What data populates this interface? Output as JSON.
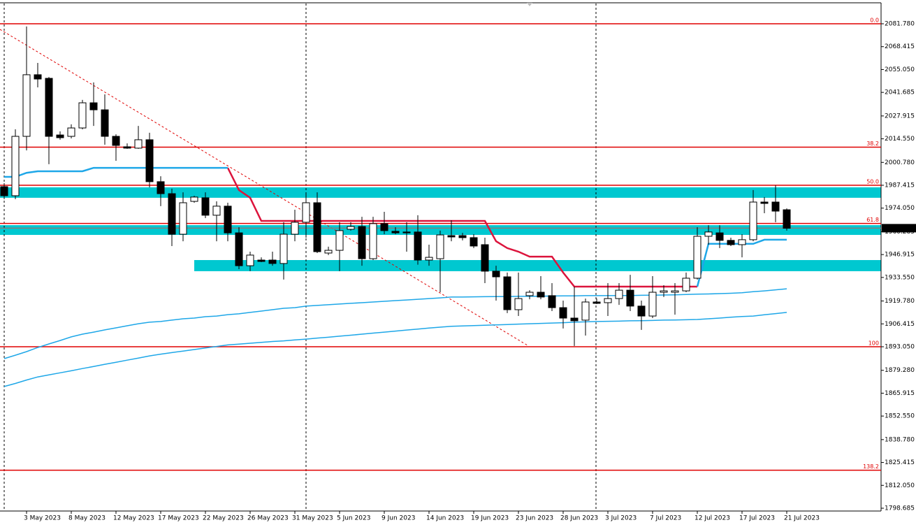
{
  "chart_data": {
    "type": "candlestick",
    "categories": [
      null,
      null,
      "3 May 2023",
      null,
      null,
      null,
      "8 May 2023",
      null,
      null,
      null,
      "12 May 2023",
      null,
      null,
      null,
      "17 May 2023",
      null,
      null,
      null,
      "22 May 2023",
      null,
      null,
      null,
      "26 May 2023",
      null,
      null,
      null,
      "31 May 2023",
      null,
      null,
      null,
      "5 Jun 2023",
      null,
      null,
      null,
      "9 Jun 2023",
      null,
      null,
      null,
      "14 Jun 2023",
      null,
      null,
      null,
      "19 Jun 2023",
      null,
      null,
      null,
      "23 Jun 2023",
      null,
      null,
      null,
      "28 Jun 2023",
      null,
      null,
      null,
      "3 Jul 2023",
      null,
      null,
      null,
      "7 Jul 2023",
      null,
      null,
      null,
      "12 Jul 2023",
      null,
      null,
      null,
      "17 Jul 2023",
      null,
      null,
      null,
      "21 Jul 2023"
    ],
    "open": [
      1986.6,
      1981.3,
      2016.0,
      2052.0,
      2049.9,
      2016.8,
      2016.0,
      2020.9,
      2035.6,
      2031.5,
      2016.0,
      2009.9,
      2009.1,
      2014.0,
      1989.5,
      1982.5,
      1958.8,
      1978.0,
      1980.1,
      1969.9,
      1975.2,
      1959.6,
      1940.4,
      1943.7,
      1943.7,
      1941.7,
      1958.8,
      1965.8,
      1977.2,
      1947.8,
      1949.4,
      1961.7,
      1963.3,
      1944.5,
      1965.0,
      1960.5,
      1960.1,
      1960.1,
      1943.7,
      1944.5,
      1958.0,
      1958.0,
      1956.8,
      1952.7,
      1937.2,
      1933.9,
      1914.7,
      1922.9,
      1924.9,
      1922.9,
      1915.9,
      1909.8,
      1908.6,
      1919.2,
      1918.8,
      1921.2,
      1926.1,
      1916.8,
      1911.0,
      1924.9,
      1924.9,
      1925.7,
      1933.1,
      1957.6,
      1959.6,
      1955.2,
      1952.7,
      1955.6,
      1977.6,
      1977.6,
      1973.1
    ],
    "high": [
      1988.7,
      2020.1,
      2080.2,
      2058.9,
      2050.7,
      2018.9,
      2023.0,
      2037.3,
      2047.5,
      2040.5,
      2017.2,
      2011.9,
      2022.1,
      2018.1,
      1992.7,
      1985.4,
      1983.3,
      1981.3,
      1983.3,
      1978.0,
      1977.2,
      1962.9,
      1948.6,
      1945.3,
      1948.6,
      1965.8,
      1973.1,
      1983.3,
      1983.3,
      1951.5,
      1965.8,
      1965.8,
      1969.0,
      1969.0,
      1971.9,
      1962.9,
      1965.8,
      1969.9,
      1952.7,
      1960.9,
      1967.0,
      1959.6,
      1958.8,
      1956.8,
      1940.4,
      1936.4,
      1936.4,
      1926.1,
      1934.3,
      1930.2,
      1920.0,
      1928.2,
      1921.2,
      1921.2,
      1930.2,
      1930.2,
      1935.1,
      1920.0,
      1934.3,
      1929.0,
      1930.2,
      1936.4,
      1962.9,
      1964.1,
      1964.1,
      1956.8,
      1958.8,
      1984.6,
      1980.5,
      1987.4,
      1973.9
    ],
    "low": [
      1979.3,
      1979.3,
      2007.8,
      2044.6,
      1999.7,
      2014.0,
      2014.8,
      2020.1,
      2022.1,
      2011.1,
      2001.7,
      2008.7,
      2008.7,
      1986.2,
      1975.2,
      1951.9,
      1954.7,
      1977.2,
      1968.2,
      1954.7,
      1954.7,
      1938.4,
      1937.2,
      1942.5,
      1940.4,
      1932.3,
      1954.7,
      1956.8,
      1947.8,
      1946.6,
      1937.2,
      1960.9,
      1940.4,
      1943.7,
      1958.8,
      1958.8,
      1948.6,
      1941.0,
      1940.4,
      1924.9,
      1954.7,
      1955.2,
      1950.7,
      1930.2,
      1920.0,
      1912.7,
      1911.0,
      1920.8,
      1920.8,
      1913.9,
      1903.7,
      1893.5,
      1899.6,
      1918.0,
      1911.0,
      1917.5,
      1913.9,
      1902.9,
      1909.8,
      1922.1,
      1911.8,
      1924.9,
      1932.3,
      1952.7,
      1950.7,
      1951.9,
      1945.3,
      1954.7,
      1971.1,
      1965.8,
      1960.9
    ],
    "close": [
      1981.3,
      2016.0,
      2052.0,
      2049.5,
      2016.0,
      2015.2,
      2020.9,
      2035.6,
      2031.5,
      2016.0,
      2010.7,
      2009.1,
      2014.0,
      1989.5,
      1982.5,
      1958.8,
      1977.2,
      1980.5,
      1969.9,
      1975.2,
      1959.6,
      1940.4,
      1946.6,
      1942.9,
      1941.7,
      1958.8,
      1965.8,
      1977.2,
      1948.6,
      1949.4,
      1960.9,
      1963.3,
      1944.5,
      1965.0,
      1960.9,
      1959.6,
      1959.6,
      1943.7,
      1945.3,
      1958.4,
      1957.2,
      1956.8,
      1951.9,
      1937.2,
      1933.9,
      1914.7,
      1921.2,
      1924.9,
      1922.1,
      1915.9,
      1909.8,
      1908.2,
      1919.2,
      1918.4,
      1921.2,
      1926.1,
      1916.8,
      1911.0,
      1924.9,
      1925.7,
      1925.7,
      1933.1,
      1957.6,
      1960.1,
      1955.2,
      1952.7,
      1955.6,
      1977.6,
      1976.8,
      1972.3,
      1962.3
    ],
    "up_color": "#ffffff",
    "down_color": "#000000",
    "lines": [
      {
        "color": "#1ea7e8",
        "width": 1.5,
        "values": [
          1886.1,
          1888.1,
          1890.2,
          1892.6,
          1894.7,
          1896.7,
          1898.8,
          1900.4,
          1901.6,
          1902.9,
          1904.1,
          1905.3,
          1906.5,
          1907.4,
          1907.8,
          1908.6,
          1909.4,
          1909.8,
          1910.6,
          1911.0,
          1911.8,
          1912.3,
          1913.1,
          1913.9,
          1914.7,
          1915.5,
          1915.9,
          1916.8,
          1917.2,
          1917.6,
          1918.0,
          1918.4,
          1918.8,
          1919.2,
          1919.6,
          1920.0,
          1920.4,
          1920.8,
          1921.2,
          1921.6,
          1922.1,
          1922.1,
          1922.2,
          1922.3,
          1922.4,
          1922.4,
          1922.5,
          1922.5,
          1922.6,
          1922.7,
          1922.8,
          1922.8,
          1922.9,
          1922.9,
          1922.9,
          1923.0,
          1923.0,
          1923.1,
          1923.2,
          1923.3,
          1923.4,
          1923.6,
          1923.8,
          1923.9,
          1924.1,
          1924.3,
          1924.6,
          1925.2,
          1925.7,
          1926.3,
          1926.9
        ]
      },
      {
        "color": "#1ea7e8",
        "width": 1.5,
        "values": [
          1869.8,
          1871.6,
          1873.6,
          1875.4,
          1876.6,
          1877.8,
          1879.0,
          1880.3,
          1881.5,
          1882.8,
          1884.0,
          1885.2,
          1886.4,
          1887.7,
          1888.7,
          1889.6,
          1890.5,
          1891.4,
          1892.3,
          1893.2,
          1894.1,
          1894.6,
          1895.1,
          1895.6,
          1896.1,
          1896.5,
          1897.0,
          1897.5,
          1898.1,
          1898.6,
          1899.2,
          1899.8,
          1900.4,
          1901.0,
          1901.6,
          1902.2,
          1902.8,
          1903.4,
          1904.0,
          1904.5,
          1905.0,
          1905.2,
          1905.4,
          1905.6,
          1905.8,
          1906.0,
          1906.3,
          1906.5,
          1906.7,
          1906.9,
          1907.1,
          1907.4,
          1907.6,
          1907.8,
          1907.9,
          1908.0,
          1908.2,
          1908.3,
          1908.4,
          1908.6,
          1908.7,
          1908.8,
          1909.0,
          1909.4,
          1909.8,
          1910.3,
          1910.7,
          1911.0,
          1911.7,
          1912.4,
          1913.1
        ]
      },
      {
        "color": "#dc143c",
        "width": 2.5,
        "values": [
          null,
          null,
          null,
          null,
          null,
          null,
          null,
          null,
          null,
          null,
          null,
          null,
          null,
          null,
          null,
          null,
          null,
          null,
          null,
          null,
          1997.6,
          1984.6,
          1980.1,
          1966.6,
          1966.6,
          1966.6,
          1966.6,
          1966.6,
          1966.6,
          1966.6,
          1966.6,
          1966.6,
          1966.6,
          1966.6,
          1966.6,
          1966.6,
          1966.6,
          1966.6,
          1966.6,
          1966.6,
          1966.6,
          1966.6,
          1966.6,
          1966.6,
          1954.7,
          1950.7,
          1948.6,
          1945.7,
          1945.7,
          1945.7,
          1936.4,
          1928.2,
          1928.2,
          1928.2,
          1928.2,
          1928.2,
          1928.2,
          1928.2,
          1928.2,
          1928.2,
          1928.2,
          1928.2,
          1928.2,
          null,
          null,
          null,
          null,
          null,
          null,
          null,
          null
        ]
      },
      {
        "color": "#1ea7e8",
        "width": 2.5,
        "values": [
          1992.3,
          1992.3,
          1994.7,
          1995.6,
          1995.6,
          1995.6,
          1995.6,
          1995.6,
          1997.6,
          1997.6,
          1997.6,
          1997.6,
          1997.6,
          1997.6,
          1997.6,
          1997.6,
          1997.6,
          1997.6,
          1997.6,
          1997.6,
          1997.6,
          null,
          null,
          null,
          null,
          null,
          null,
          null,
          null,
          null,
          null,
          null,
          null,
          null,
          null,
          null,
          null,
          null,
          null,
          null,
          null,
          null,
          null,
          null,
          null,
          null,
          null,
          null,
          null,
          null,
          null,
          null,
          null,
          null,
          null,
          null,
          null,
          null,
          null,
          null,
          null,
          null,
          1928.2,
          1953.2,
          1953.2,
          1953.2,
          1953.2,
          1953.2,
          1955.6,
          1955.6,
          1955.6
        ]
      }
    ],
    "zones": [
      {
        "low": 1980.1,
        "high": 1986.2
      },
      {
        "low": 1958.4,
        "high": 1964.1
      },
      {
        "low": 1937.2,
        "high": 1943.7,
        "start": 17
      }
    ],
    "zone_color": "#00c8d0",
    "fib_levels": [
      {
        "label": "0.0",
        "price": 2081.78
      },
      {
        "label": "38.2",
        "price": 2009.7
      },
      {
        "label": "50.0",
        "price": 1987.4
      },
      {
        "label": "61.8",
        "price": 1965.1
      },
      {
        "label": "100",
        "price": 1893.05
      },
      {
        "label": "138.2",
        "price": 1820.9
      }
    ],
    "fib_color": "#e00000",
    "current_price": 1962.338,
    "ylim": [
      1797.05,
      2093.63
    ],
    "yticks": [
      {
        "value": 2081.78,
        "label": "2081.780"
      },
      2068.415,
      {
        "value": 2055.05,
        "label": "2055.050"
      },
      2041.685,
      2027.915,
      {
        "value": 2014.55,
        "label": "2014.550"
      },
      {
        "value": 2000.78,
        "label": "2000.780"
      },
      1987.415,
      {
        "value": 1974.05,
        "label": "1974.050"
      },
      1960.285,
      1946.915,
      {
        "value": 1933.55,
        "label": "1933.550"
      },
      {
        "value": 1919.78,
        "label": "1919.780"
      },
      1906.415,
      {
        "value": 1893.05,
        "label": "1893.050"
      },
      {
        "value": 1879.28,
        "label": "1879.280"
      },
      1865.915,
      {
        "value": 1852.55,
        "label": "1852.550"
      },
      {
        "value": 1838.78,
        "label": "1838.780"
      },
      1825.415,
      {
        "value": 1812.05,
        "label": "1812.050"
      },
      1798.685
    ]
  }
}
